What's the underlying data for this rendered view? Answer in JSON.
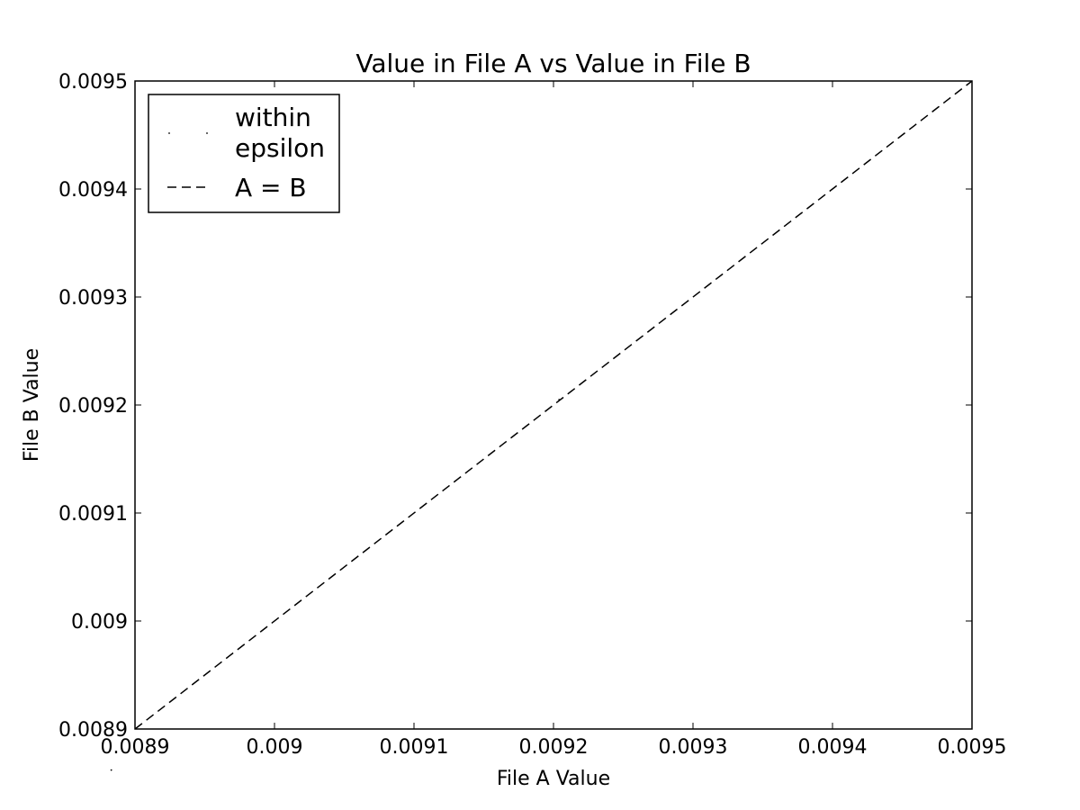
{
  "chart_data": {
    "type": "scatter",
    "title": "Value in File A vs Value in File B",
    "xlabel": "File A Value",
    "ylabel": "File B Value",
    "xlim": [
      0.0089,
      0.0095
    ],
    "ylim": [
      0.0089,
      0.0095
    ],
    "x_ticks": [
      "0.0089",
      "0.009",
      "0.0091",
      "0.0092",
      "0.0093",
      "0.0094",
      "0.0095"
    ],
    "y_ticks": [
      "0.0089",
      "0.009",
      "0.0091",
      "0.0092",
      "0.0093",
      "0.0094",
      "0.0095"
    ],
    "grid": false,
    "legend_position": "upper-left",
    "series": [
      {
        "name": "within epsilon",
        "marker": "point",
        "color": "#000000",
        "points": [
          {
            "x": 0.008883,
            "y": 0.008862
          },
          {
            "x": 0.009204,
            "y": 0.009205
          }
        ]
      },
      {
        "name": "A = B",
        "style": "dashed-line",
        "color": "#000000",
        "points": [
          {
            "x": 0.0089,
            "y": 0.0089
          },
          {
            "x": 0.0095,
            "y": 0.0095
          }
        ]
      }
    ],
    "legend": {
      "within_line1": "within",
      "within_line2": "epsilon",
      "equal": "A = B"
    }
  }
}
